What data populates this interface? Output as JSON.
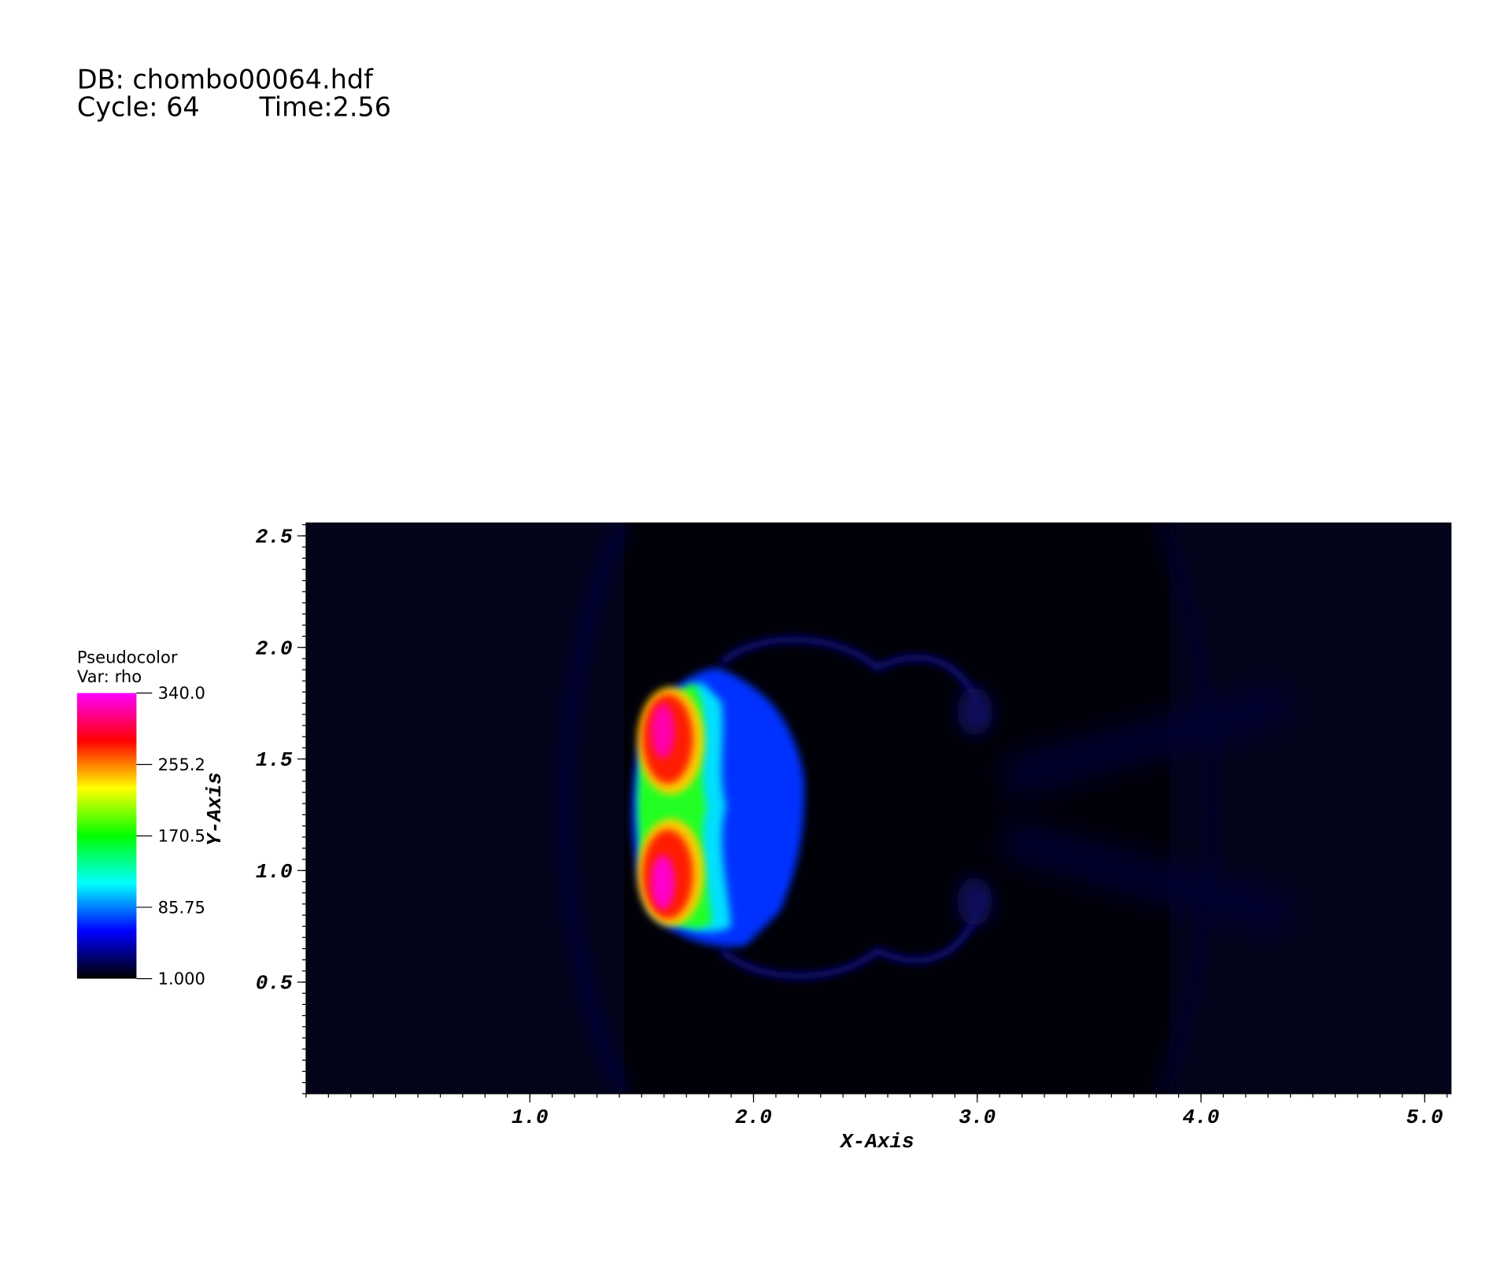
{
  "chart_data": {
    "type": "pseudocolor",
    "header": {
      "db": "DB: chombo00064.hdf",
      "cycle": "Cycle: 64",
      "time": "Time:2.56"
    },
    "legend": {
      "title": "Pseudocolor",
      "variable": "Var: rho",
      "range": [
        1,
        340
      ],
      "ticks": [
        {
          "value": 340,
          "label": "340.0"
        },
        255.2,
        170.5,
        85.75,
        {
          "value": 1,
          "label": "1.000"
        }
      ],
      "colors": [
        "#000000",
        "#0000ff",
        "#00ffff",
        "#00ff00",
        "#ffff00",
        "#ff0000",
        "#ff00ff"
      ]
    },
    "x_label": "X-Axis",
    "y_label": "Y-Axis",
    "xlim": [
      0,
      5.12
    ],
    "ylim": [
      0,
      2.56
    ],
    "xticks": [
      {
        "value": 1,
        "label": "1.0"
      },
      {
        "value": 2,
        "label": "2.0"
      },
      {
        "value": 3,
        "label": "3.0"
      },
      {
        "value": 4,
        "label": "4.0"
      },
      {
        "value": 5,
        "label": "5.0"
      }
    ],
    "yticks": [
      {
        "value": 0.5,
        "label": "0.5"
      },
      {
        "value": 1,
        "label": "1.0"
      },
      {
        "value": 1.5,
        "label": "1.5"
      },
      {
        "value": 2,
        "label": "2.0"
      },
      {
        "value": 2.5,
        "label": "2.5"
      }
    ]
  }
}
